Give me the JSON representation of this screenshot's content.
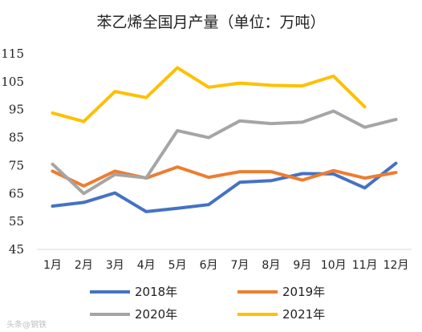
{
  "chart_data": {
    "type": "line",
    "title": "苯乙烯全国月产量（单位：万吨）",
    "categories": [
      "1月",
      "2月",
      "3月",
      "4月",
      "5月",
      "6月",
      "7月",
      "8月",
      "9月",
      "10月",
      "11月",
      "12月"
    ],
    "ylim": [
      45,
      115
    ],
    "yticks": [
      45,
      55,
      65,
      75,
      85,
      95,
      105,
      115
    ],
    "grid": false,
    "legend_position": "bottom",
    "series": [
      {
        "name": "2018年",
        "color": "#4472C4",
        "values": [
          60.5,
          61.8,
          65.2,
          58.5,
          59.7,
          61.0,
          69.0,
          69.6,
          72.1,
          72.0,
          67.0,
          75.8
        ]
      },
      {
        "name": "2019年",
        "color": "#ED7D31",
        "values": [
          73.0,
          67.7,
          73.0,
          70.5,
          74.5,
          70.8,
          72.8,
          72.8,
          69.8,
          73.2,
          70.5,
          72.5
        ]
      },
      {
        "name": "2020年",
        "color": "#A5A5A5",
        "values": [
          75.5,
          65.0,
          71.8,
          70.6,
          87.5,
          85.0,
          91.0,
          90.0,
          90.5,
          94.5,
          88.7,
          91.5
        ]
      },
      {
        "name": "2021年",
        "color": "#FFC000",
        "values": [
          93.8,
          90.8,
          101.5,
          99.3,
          110.0,
          103.0,
          104.5,
          103.7,
          103.5,
          107.0,
          96.0,
          null
        ]
      }
    ]
  },
  "watermark": "头条@钢铁"
}
